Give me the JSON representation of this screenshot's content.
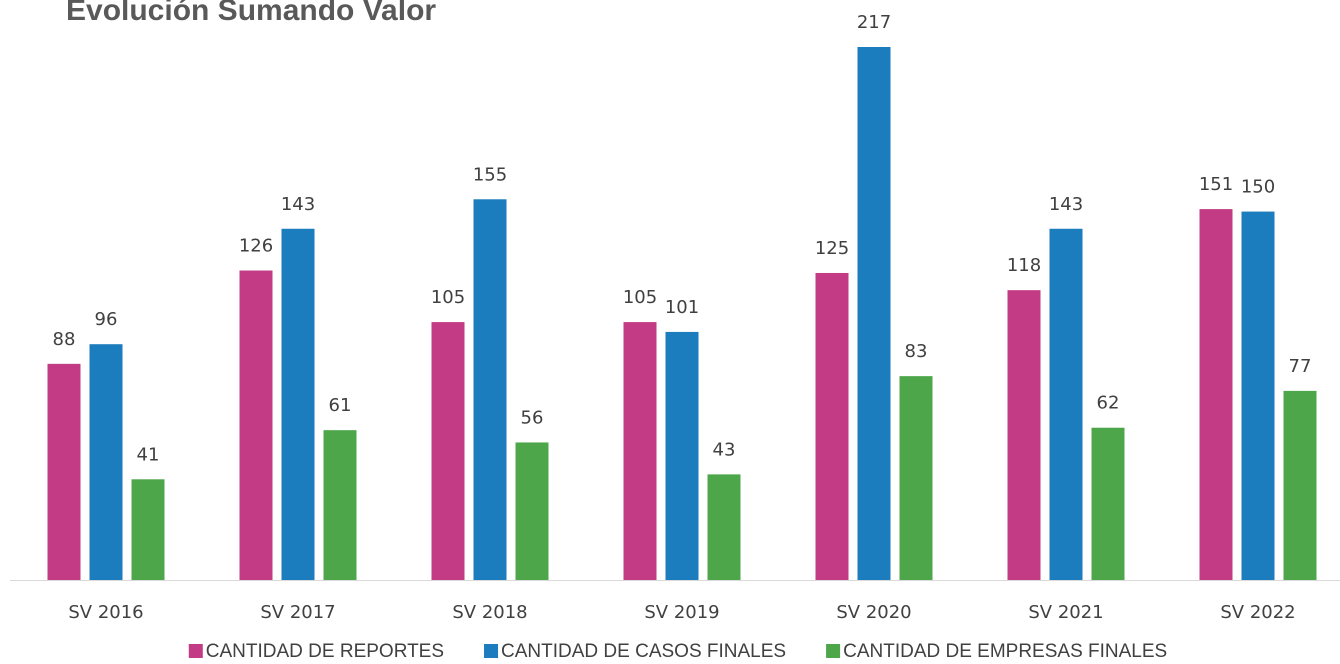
{
  "chart_data": {
    "type": "bar",
    "title": "Evolución Sumando Valor",
    "categories": [
      "SV 2016",
      "SV 2017",
      "SV 2018",
      "SV 2019",
      "SV 2020",
      "SV 2021",
      "SV 2022"
    ],
    "series": [
      {
        "name": "CANTIDAD DE REPORTES",
        "color": "#c23b84",
        "values": [
          88,
          126,
          105,
          105,
          125,
          118,
          151
        ]
      },
      {
        "name": "CANTIDAD DE CASOS FINALES",
        "color": "#1b7dbd",
        "values": [
          96,
          143,
          155,
          101,
          217,
          143,
          150
        ]
      },
      {
        "name": "CANTIDAD DE EMPRESAS FINALES",
        "color": "#4da64a",
        "values": [
          41,
          61,
          56,
          43,
          83,
          62,
          77
        ]
      }
    ],
    "legend": "bottom"
  }
}
